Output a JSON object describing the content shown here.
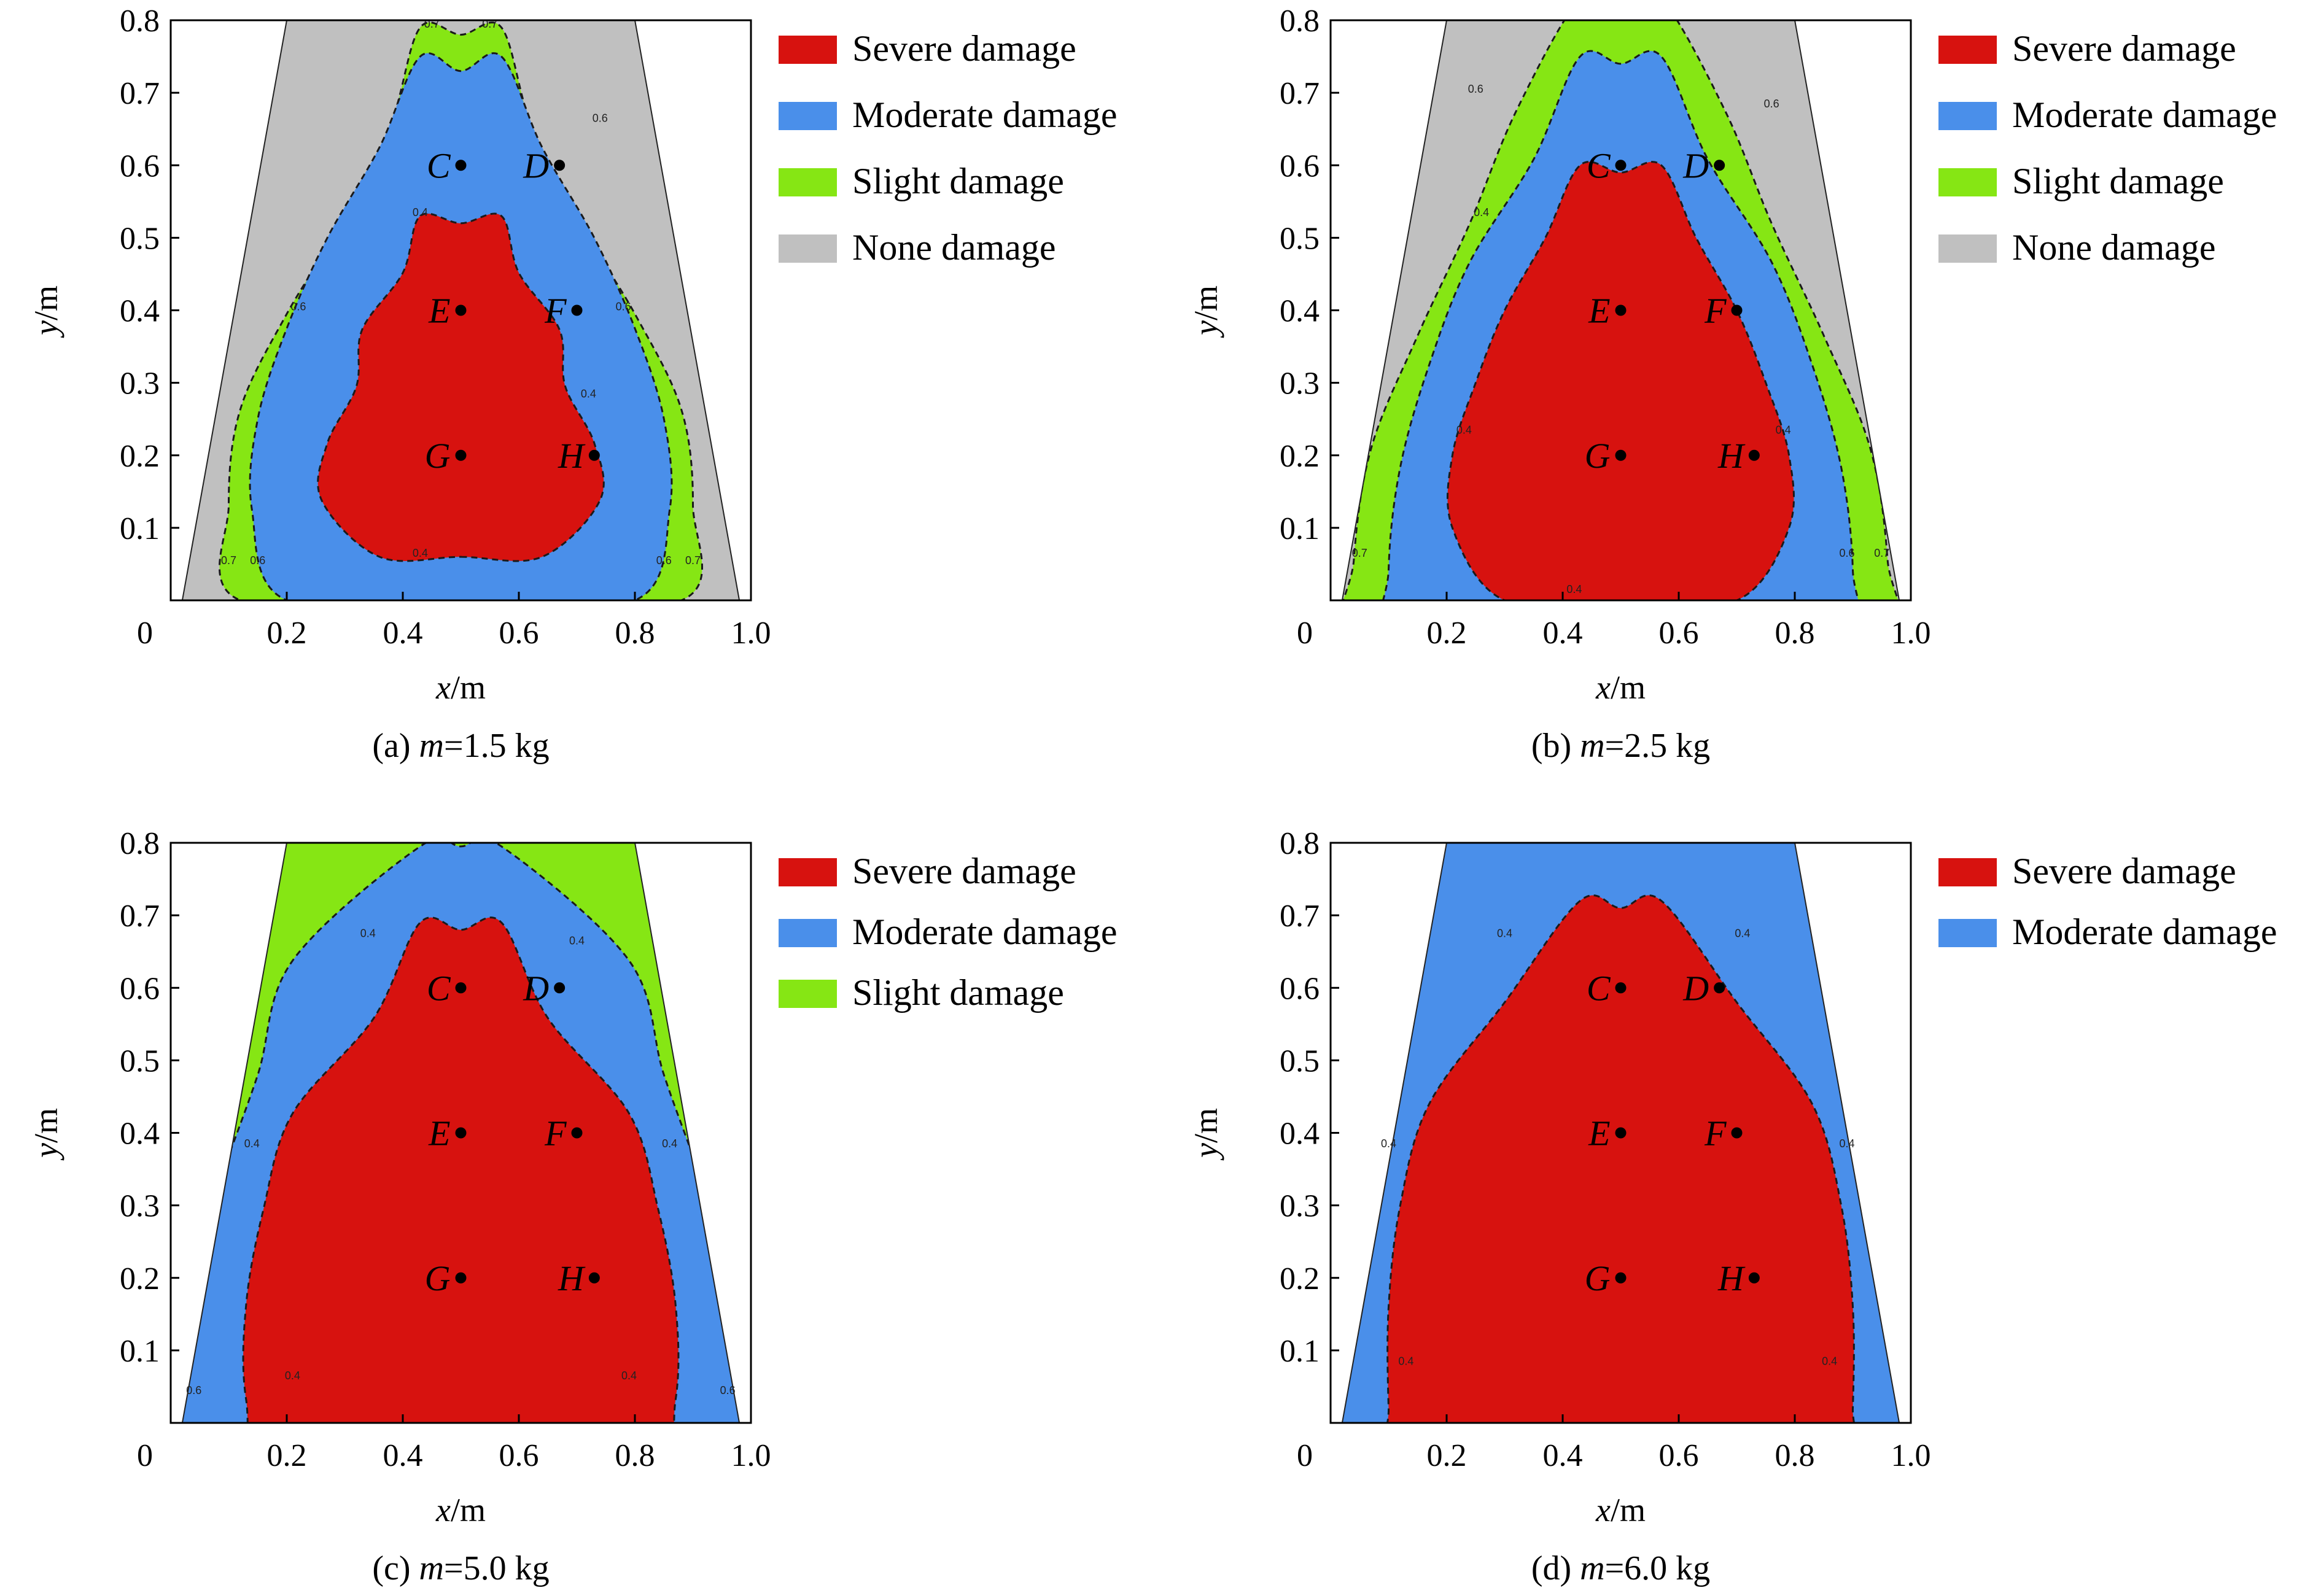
{
  "colors": {
    "severe": "#d7120f",
    "moderate": "#4a8fea",
    "slight": "#86e614",
    "none": "#c0c0c0",
    "outside": "#ffffff"
  },
  "chart_data": [
    {
      "type": "contour",
      "caption_prefix": "(a) ",
      "caption_var": "m",
      "caption_value": "=1.5 kg",
      "xlabel_var": "x",
      "xlabel_unit": "/m",
      "ylabel_var": "y",
      "ylabel_unit": "/m",
      "xlim": [
        0,
        1.0
      ],
      "ylim": [
        0,
        0.8
      ],
      "xticks": [
        "0",
        "0.2",
        "0.4",
        "0.6",
        "0.8",
        "1.0"
      ],
      "yticks": [
        "0.1",
        "0.2",
        "0.3",
        "0.4",
        "0.5",
        "0.6",
        "0.7",
        "0.8"
      ],
      "legend": [
        {
          "label": "Severe damage",
          "color_key": "severe"
        },
        {
          "label": "Moderate damage",
          "color_key": "moderate"
        },
        {
          "label": "Slight damage",
          "color_key": "slight"
        },
        {
          "label": "None damage",
          "color_key": "none"
        }
      ],
      "trapezoid": {
        "bottom": [
          0.02,
          0.98
        ],
        "top": [
          0.2,
          0.8
        ]
      },
      "background_region": "none",
      "regions": [
        {
          "class": "slight",
          "y_range": [
            0.0,
            0.79
          ],
          "half_width": [
            0.38,
            0.4,
            0.38,
            0.3,
            0.2,
            0.12
          ],
          "x_center": 0.5,
          "dip": 0.01
        },
        {
          "class": "moderate",
          "y_range": [
            0.0,
            0.75
          ],
          "half_width": [
            0.3,
            0.36,
            0.35,
            0.3,
            0.23,
            0.14
          ],
          "x_center": 0.5,
          "dip": 0.02
        },
        {
          "class": "severe",
          "y_range": [
            0.06,
            0.53
          ],
          "half_width": [
            0.14,
            0.24,
            0.23,
            0.18,
            0.17,
            0.1
          ],
          "x_center": 0.5,
          "dip": 0.01
        }
      ],
      "contour_labels": [
        {
          "text": "0.7",
          "x": 0.45,
          "y": 0.79
        },
        {
          "text": "0.7",
          "x": 0.55,
          "y": 0.79
        },
        {
          "text": "0.6",
          "x": 0.22,
          "y": 0.4
        },
        {
          "text": "0.6",
          "x": 0.78,
          "y": 0.4
        },
        {
          "text": "0.6",
          "x": 0.74,
          "y": 0.66
        },
        {
          "text": "0.4",
          "x": 0.43,
          "y": 0.53
        },
        {
          "text": "0.4",
          "x": 0.43,
          "y": 0.06
        },
        {
          "text": "0.4",
          "x": 0.72,
          "y": 0.28
        },
        {
          "text": "0.7",
          "x": 0.1,
          "y": 0.05
        },
        {
          "text": "0.6",
          "x": 0.15,
          "y": 0.05
        },
        {
          "text": "0.6",
          "x": 0.85,
          "y": 0.05
        },
        {
          "text": "0.7",
          "x": 0.9,
          "y": 0.05
        }
      ],
      "points": [
        {
          "label": "C",
          "x": 0.5,
          "y": 0.6
        },
        {
          "label": "D",
          "x": 0.67,
          "y": 0.6
        },
        {
          "label": "E",
          "x": 0.5,
          "y": 0.4
        },
        {
          "label": "F",
          "x": 0.7,
          "y": 0.4
        },
        {
          "label": "G",
          "x": 0.5,
          "y": 0.2
        },
        {
          "label": "H",
          "x": 0.73,
          "y": 0.2
        }
      ]
    },
    {
      "type": "contour",
      "caption_prefix": "(b) ",
      "caption_var": "m",
      "caption_value": "=2.5 kg",
      "xlabel_var": "x",
      "xlabel_unit": "/m",
      "ylabel_var": "y",
      "ylabel_unit": "/m",
      "xlim": [
        0,
        1.0
      ],
      "ylim": [
        0,
        0.8
      ],
      "xticks": [
        "0",
        "0.2",
        "0.4",
        "0.6",
        "0.8",
        "1.0"
      ],
      "yticks": [
        "0.1",
        "0.2",
        "0.3",
        "0.4",
        "0.5",
        "0.6",
        "0.7",
        "0.8"
      ],
      "legend": [
        {
          "label": "Severe damage",
          "color_key": "severe"
        },
        {
          "label": "Moderate damage",
          "color_key": "moderate"
        },
        {
          "label": "Slight damage",
          "color_key": "slight"
        },
        {
          "label": "None damage",
          "color_key": "none"
        }
      ],
      "trapezoid": {
        "bottom": [
          0.02,
          0.98
        ],
        "top": [
          0.2,
          0.8
        ]
      },
      "background_region": "none",
      "regions": [
        {
          "class": "slight",
          "y_range": [
            -0.1,
            0.83
          ],
          "half_width": [
            0.46,
            0.46,
            0.43,
            0.35,
            0.26,
            0.18
          ],
          "x_center": 0.5,
          "dip": 0.0
        },
        {
          "class": "moderate",
          "y_range": [
            -0.1,
            0.75
          ],
          "half_width": [
            0.39,
            0.4,
            0.38,
            0.33,
            0.26,
            0.15
          ],
          "x_center": 0.5,
          "dip": 0.01
        },
        {
          "class": "severe",
          "y_range": [
            0.0,
            0.6
          ],
          "half_width": [
            0.2,
            0.29,
            0.29,
            0.25,
            0.2,
            0.13
          ],
          "x_center": 0.5,
          "dip": 0.01
        }
      ],
      "contour_labels": [
        {
          "text": "0.6",
          "x": 0.25,
          "y": 0.7
        },
        {
          "text": "0.6",
          "x": 0.76,
          "y": 0.68
        },
        {
          "text": "0.4",
          "x": 0.26,
          "y": 0.53
        },
        {
          "text": "0.4",
          "x": 0.23,
          "y": 0.23
        },
        {
          "text": "0.4",
          "x": 0.78,
          "y": 0.23
        },
        {
          "text": "0.4",
          "x": 0.42,
          "y": 0.01
        },
        {
          "text": "0.7",
          "x": 0.05,
          "y": 0.06
        },
        {
          "text": "0.6",
          "x": 0.89,
          "y": 0.06
        },
        {
          "text": "0.7",
          "x": 0.95,
          "y": 0.06
        }
      ],
      "points": [
        {
          "label": "C",
          "x": 0.5,
          "y": 0.6
        },
        {
          "label": "D",
          "x": 0.67,
          "y": 0.6
        },
        {
          "label": "E",
          "x": 0.5,
          "y": 0.4
        },
        {
          "label": "F",
          "x": 0.7,
          "y": 0.4
        },
        {
          "label": "G",
          "x": 0.5,
          "y": 0.2
        },
        {
          "label": "H",
          "x": 0.73,
          "y": 0.2
        }
      ]
    },
    {
      "type": "contour",
      "caption_prefix": "(c) ",
      "caption_var": "m",
      "caption_value": "=5.0 kg",
      "xlabel_var": "x",
      "xlabel_unit": "/m",
      "ylabel_var": "y",
      "ylabel_unit": "/m",
      "xlim": [
        0,
        1.0
      ],
      "ylim": [
        0,
        0.8
      ],
      "xticks": [
        "0",
        "0.2",
        "0.4",
        "0.6",
        "0.8",
        "1.0"
      ],
      "yticks": [
        "0.1",
        "0.2",
        "0.3",
        "0.4",
        "0.5",
        "0.6",
        "0.7",
        "0.8"
      ],
      "legend": [
        {
          "label": "Severe damage",
          "color_key": "severe"
        },
        {
          "label": "Moderate damage",
          "color_key": "moderate"
        },
        {
          "label": "Slight damage",
          "color_key": "slight"
        }
      ],
      "trapezoid": {
        "bottom": [
          0.02,
          0.98
        ],
        "top": [
          0.2,
          0.8
        ]
      },
      "background_region": "slight",
      "regions": [
        {
          "class": "moderate",
          "y_range": [
            -0.15,
            0.795
          ],
          "half_width": [
            0.5,
            0.5,
            0.48,
            0.42,
            0.35,
            0.29
          ],
          "x_center": 0.5,
          "dip": 0.0
        },
        {
          "class": "severe",
          "y_range": [
            -0.1,
            0.69
          ],
          "half_width": [
            0.32,
            0.37,
            0.37,
            0.34,
            0.29,
            0.15
          ],
          "x_center": 0.5,
          "dip": 0.01
        }
      ],
      "contour_labels": [
        {
          "text": "0.4",
          "x": 0.14,
          "y": 0.38
        },
        {
          "text": "0.4",
          "x": 0.86,
          "y": 0.38
        },
        {
          "text": "0.4",
          "x": 0.21,
          "y": 0.06
        },
        {
          "text": "0.4",
          "x": 0.79,
          "y": 0.06
        },
        {
          "text": "0.4",
          "x": 0.34,
          "y": 0.67
        },
        {
          "text": "0.4",
          "x": 0.7,
          "y": 0.66
        },
        {
          "text": "0.6",
          "x": 0.04,
          "y": 0.04
        },
        {
          "text": "0.6",
          "x": 0.96,
          "y": 0.04
        }
      ],
      "points": [
        {
          "label": "C",
          "x": 0.5,
          "y": 0.6
        },
        {
          "label": "D",
          "x": 0.67,
          "y": 0.6
        },
        {
          "label": "E",
          "x": 0.5,
          "y": 0.4
        },
        {
          "label": "F",
          "x": 0.7,
          "y": 0.4
        },
        {
          "label": "G",
          "x": 0.5,
          "y": 0.2
        },
        {
          "label": "H",
          "x": 0.73,
          "y": 0.2
        }
      ]
    },
    {
      "type": "contour",
      "caption_prefix": "(d) ",
      "caption_var": "m",
      "caption_value": "=6.0 kg",
      "xlabel_var": "x",
      "xlabel_unit": "/m",
      "ylabel_var": "y",
      "ylabel_unit": "/m",
      "xlim": [
        0,
        1.0
      ],
      "ylim": [
        0,
        0.8
      ],
      "xticks": [
        "0",
        "0.2",
        "0.4",
        "0.6",
        "0.8",
        "1.0"
      ],
      "yticks": [
        "0.1",
        "0.2",
        "0.3",
        "0.4",
        "0.5",
        "0.6",
        "0.7",
        "0.8"
      ],
      "legend": [
        {
          "label": "Severe damage",
          "color_key": "severe"
        },
        {
          "label": "Moderate damage",
          "color_key": "moderate"
        }
      ],
      "trapezoid": {
        "bottom": [
          0.02,
          0.98
        ],
        "top": [
          0.2,
          0.8
        ]
      },
      "background_region": "moderate",
      "regions": [
        {
          "class": "severe",
          "y_range": [
            -0.12,
            0.72
          ],
          "half_width": [
            0.39,
            0.4,
            0.4,
            0.38,
            0.33,
            0.2
          ],
          "x_center": 0.5,
          "dip": 0.01
        }
      ],
      "contour_labels": [
        {
          "text": "0.4",
          "x": 0.1,
          "y": 0.38
        },
        {
          "text": "0.4",
          "x": 0.89,
          "y": 0.38
        },
        {
          "text": "0.4",
          "x": 0.13,
          "y": 0.08
        },
        {
          "text": "0.4",
          "x": 0.86,
          "y": 0.08
        },
        {
          "text": "0.4",
          "x": 0.3,
          "y": 0.67
        },
        {
          "text": "0.4",
          "x": 0.71,
          "y": 0.67
        }
      ],
      "points": [
        {
          "label": "C",
          "x": 0.5,
          "y": 0.6
        },
        {
          "label": "D",
          "x": 0.67,
          "y": 0.6
        },
        {
          "label": "E",
          "x": 0.5,
          "y": 0.4
        },
        {
          "label": "F",
          "x": 0.7,
          "y": 0.4
        },
        {
          "label": "G",
          "x": 0.5,
          "y": 0.2
        },
        {
          "label": "H",
          "x": 0.73,
          "y": 0.2
        }
      ]
    }
  ]
}
